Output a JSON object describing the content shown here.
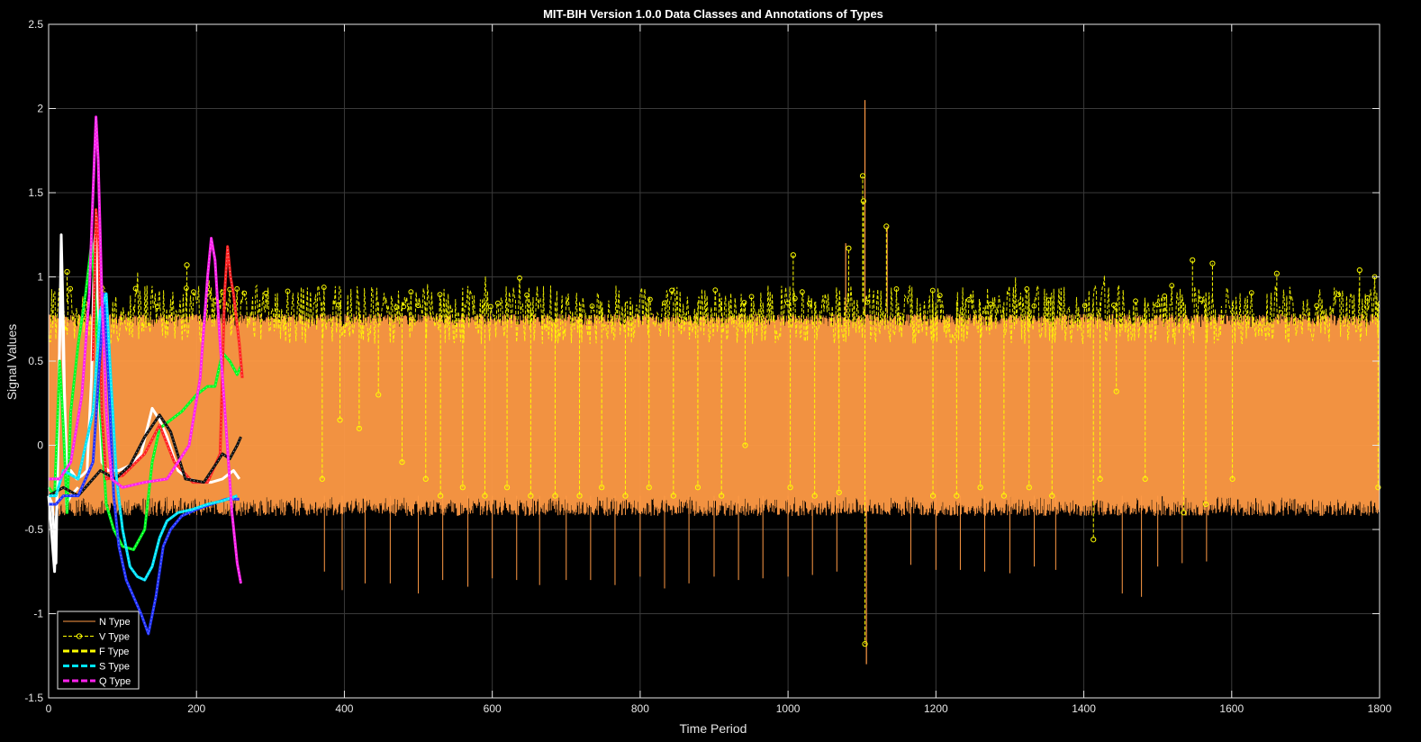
{
  "chart_data": {
    "type": "line",
    "title": "MIT-BIH Version 1.0.0 Data Classes and Annotations of Types",
    "xlabel": "Time Period",
    "ylabel": "Signal Values",
    "xlim": [
      0,
      1800
    ],
    "ylim": [
      -1.5,
      2.5
    ],
    "xticks": [
      0,
      200,
      400,
      600,
      800,
      1000,
      1200,
      1400,
      1600,
      1800
    ],
    "yticks": [
      -1.5,
      -1,
      -0.5,
      0,
      0.5,
      1,
      1.5,
      2,
      2.5
    ],
    "xtick_labels": [
      "0",
      "200",
      "400",
      "600",
      "800",
      "1000",
      "1200",
      "1400",
      "1600",
      "1800"
    ],
    "ytick_labels": [
      "-1.5",
      "-1",
      "-0.5",
      "0",
      "0.5",
      "1",
      "1.5",
      "2",
      "2.5"
    ],
    "grid": true,
    "background": "#000000",
    "legend_position": "bottom-left",
    "series": [
      {
        "name": "N Type",
        "color": "#ff9a45",
        "style": "solid",
        "x_range": [
          0,
          1800
        ],
        "band_upper": 0.78,
        "band_lower": -0.3,
        "spikes_down": [
          [
            373,
            -0.75
          ],
          [
            397,
            -0.86
          ],
          [
            428,
            -0.82
          ],
          [
            462,
            -0.82
          ],
          [
            500,
            -0.88
          ],
          [
            533,
            -0.8
          ],
          [
            567,
            -0.84
          ],
          [
            600,
            -0.79
          ],
          [
            633,
            -0.8
          ],
          [
            664,
            -0.83
          ],
          [
            700,
            -0.8
          ],
          [
            733,
            -0.8
          ],
          [
            766,
            -0.83
          ],
          [
            800,
            -0.78
          ],
          [
            833,
            -0.85
          ],
          [
            866,
            -0.82
          ],
          [
            900,
            -0.78
          ],
          [
            933,
            -0.8
          ],
          [
            966,
            -0.79
          ],
          [
            1000,
            -0.78
          ],
          [
            1033,
            -0.77
          ],
          [
            1066,
            -0.75
          ],
          [
            1166,
            -0.71
          ],
          [
            1200,
            -0.74
          ],
          [
            1233,
            -0.74
          ],
          [
            1266,
            -0.75
          ],
          [
            1300,
            -0.76
          ],
          [
            1333,
            -0.72
          ],
          [
            1362,
            -0.74
          ],
          [
            1452,
            -0.88
          ],
          [
            1478,
            -0.9
          ],
          [
            1500,
            -0.72
          ],
          [
            1533,
            -0.7
          ],
          [
            1566,
            -0.69
          ]
        ],
        "spikes_up": [
          [
            1104,
            2.05
          ],
          [
            1134,
            1.3
          ],
          [
            1078,
            1.2
          ]
        ],
        "spikes_low": [
          [
            1106,
            -1.3
          ]
        ]
      },
      {
        "name": "V Type",
        "color": "#ffff00",
        "style": "dashed-circles",
        "x_range": [
          0,
          1800
        ],
        "band_upper": 0.95,
        "band_lower": 0.6,
        "dips": [
          [
            370,
            -0.2
          ],
          [
            394,
            0.15
          ],
          [
            420,
            0.1
          ],
          [
            446,
            0.3
          ],
          [
            478,
            -0.1
          ],
          [
            510,
            -0.2
          ],
          [
            530,
            -0.3
          ],
          [
            560,
            -0.25
          ],
          [
            590,
            -0.3
          ],
          [
            620,
            -0.25
          ],
          [
            652,
            -0.3
          ],
          [
            685,
            -0.3
          ],
          [
            718,
            -0.3
          ],
          [
            748,
            -0.25
          ],
          [
            780,
            -0.3
          ],
          [
            812,
            -0.25
          ],
          [
            845,
            -0.3
          ],
          [
            878,
            -0.25
          ],
          [
            910,
            -0.3
          ],
          [
            942,
            0.0
          ],
          [
            1003,
            -0.25
          ],
          [
            1036,
            -0.3
          ],
          [
            1069,
            -0.28
          ],
          [
            1196,
            -0.3
          ],
          [
            1228,
            -0.3
          ],
          [
            1260,
            -0.25
          ],
          [
            1292,
            -0.3
          ],
          [
            1326,
            -0.25
          ],
          [
            1357,
            -0.3
          ],
          [
            1413,
            -0.56
          ],
          [
            1422,
            -0.2
          ],
          [
            1444,
            0.32
          ],
          [
            1483,
            -0.2
          ],
          [
            1535,
            -0.4
          ],
          [
            1565,
            -0.35
          ],
          [
            1601,
            -0.2
          ],
          [
            1798,
            -0.25
          ]
        ],
        "peaks": [
          [
            1101,
            1.6
          ],
          [
            1102,
            1.45
          ],
          [
            1104,
            -1.18
          ],
          [
            1133,
            1.3
          ],
          [
            1082,
            1.17
          ],
          [
            1007,
            1.13
          ],
          [
            1547,
            1.1
          ],
          [
            1574,
            1.08
          ],
          [
            1661,
            1.02
          ],
          [
            1773,
            1.04
          ],
          [
            187,
            1.07
          ],
          [
            25,
            1.03
          ]
        ]
      },
      {
        "name": "F Type",
        "color": "#ffff00",
        "style": "thick-dashed",
        "x_range": [
          0,
          260
        ]
      },
      {
        "name": "S Type",
        "color": "#00e5ff",
        "style": "thick-dashed",
        "x_range": [
          0,
          260
        ]
      },
      {
        "name": "Q Type",
        "color": "#ff22ee",
        "style": "thick-dashed",
        "x_range": [
          0,
          260
        ]
      }
    ],
    "short_traces": [
      {
        "color": "#ffffff",
        "points": [
          [
            0,
            -0.3
          ],
          [
            5,
            -0.35
          ],
          [
            10,
            -0.7
          ],
          [
            13,
            0.2
          ],
          [
            17,
            1.1
          ],
          [
            20,
            0.5
          ],
          [
            25,
            -0.2
          ],
          [
            30,
            -0.15
          ],
          [
            38,
            -0.2
          ],
          [
            45,
            -0.18
          ],
          [
            52,
            -0.15
          ],
          [
            58,
            0.4
          ],
          [
            62,
            1.2
          ],
          [
            65,
            1.35
          ],
          [
            68,
            0.3
          ],
          [
            72,
            -0.1
          ],
          [
            80,
            -0.15
          ],
          [
            95,
            -0.15
          ],
          [
            110,
            -0.12
          ],
          [
            125,
            -0.05
          ],
          [
            140,
            0.22
          ],
          [
            150,
            0.15
          ],
          [
            160,
            0.05
          ],
          [
            175,
            -0.15
          ],
          [
            190,
            -0.2
          ],
          [
            205,
            -0.22
          ],
          [
            220,
            -0.22
          ],
          [
            235,
            -0.2
          ],
          [
            250,
            -0.15
          ],
          [
            258,
            -0.2
          ]
        ]
      },
      {
        "color": "#ffffff",
        "points": [
          [
            0,
            -0.3
          ],
          [
            8,
            -0.75
          ],
          [
            12,
            -0.2
          ],
          [
            17,
            1.25
          ],
          [
            20,
            0.7
          ],
          [
            24,
            -0.35
          ],
          [
            30,
            -0.3
          ],
          [
            40,
            -0.25
          ]
        ]
      },
      {
        "color": "#00ff22",
        "points": [
          [
            0,
            -0.25
          ],
          [
            8,
            -0.3
          ],
          [
            15,
            0.5
          ],
          [
            20,
            0.1
          ],
          [
            25,
            -0.4
          ],
          [
            30,
            0.2
          ],
          [
            40,
            0.6
          ],
          [
            50,
            0.9
          ],
          [
            58,
            1.2
          ],
          [
            62,
            0.95
          ],
          [
            66,
            0.6
          ],
          [
            70,
            0.2
          ],
          [
            78,
            -0.35
          ],
          [
            88,
            -0.5
          ],
          [
            100,
            -0.6
          ],
          [
            115,
            -0.62
          ],
          [
            130,
            -0.5
          ],
          [
            140,
            -0.1
          ],
          [
            150,
            0.1
          ],
          [
            165,
            0.15
          ],
          [
            180,
            0.2
          ],
          [
            200,
            0.3
          ],
          [
            215,
            0.35
          ],
          [
            225,
            0.35
          ],
          [
            235,
            0.55
          ],
          [
            245,
            0.5
          ],
          [
            255,
            0.42
          ],
          [
            260,
            0.47
          ]
        ]
      },
      {
        "color": "#ff2222",
        "points": [
          [
            60,
            0.5
          ],
          [
            64,
            1.4
          ],
          [
            68,
            1.2
          ],
          [
            72,
            0.2
          ],
          [
            78,
            -0.2
          ],
          [
            100,
            -0.18
          ],
          [
            130,
            -0.05
          ],
          [
            150,
            0.12
          ],
          [
            170,
            -0.1
          ],
          [
            195,
            -0.22
          ],
          [
            215,
            -0.22
          ],
          [
            232,
            -0.05
          ],
          [
            238,
            0.9
          ],
          [
            242,
            1.18
          ],
          [
            246,
            1.0
          ],
          [
            250,
            0.9
          ],
          [
            258,
            0.6
          ],
          [
            262,
            0.4
          ]
        ]
      },
      {
        "color": "#111111",
        "points": [
          [
            0,
            -0.3
          ],
          [
            20,
            -0.25
          ],
          [
            40,
            -0.3
          ],
          [
            70,
            -0.15
          ],
          [
            90,
            -0.2
          ],
          [
            110,
            -0.12
          ],
          [
            130,
            0.05
          ],
          [
            150,
            0.18
          ],
          [
            165,
            0.08
          ],
          [
            185,
            -0.2
          ],
          [
            210,
            -0.22
          ],
          [
            228,
            -0.1
          ],
          [
            235,
            -0.05
          ],
          [
            245,
            -0.08
          ],
          [
            255,
            0.0
          ],
          [
            260,
            0.05
          ]
        ]
      },
      {
        "color": "#2233ff",
        "points": [
          [
            0,
            -0.35
          ],
          [
            10,
            -0.35
          ],
          [
            20,
            -0.3
          ],
          [
            40,
            -0.3
          ],
          [
            60,
            -0.1
          ],
          [
            75,
            0.9
          ],
          [
            82,
            0.3
          ],
          [
            88,
            -0.3
          ],
          [
            95,
            -0.6
          ],
          [
            105,
            -0.8
          ],
          [
            115,
            -0.9
          ],
          [
            125,
            -1.0
          ],
          [
            135,
            -1.12
          ],
          [
            145,
            -0.9
          ],
          [
            155,
            -0.6
          ],
          [
            165,
            -0.5
          ],
          [
            180,
            -0.42
          ],
          [
            200,
            -0.38
          ],
          [
            220,
            -0.35
          ],
          [
            240,
            -0.32
          ],
          [
            258,
            -0.32
          ]
        ]
      },
      {
        "color": "#00e5ff",
        "points": [
          [
            0,
            -0.3
          ],
          [
            10,
            -0.3
          ],
          [
            20,
            -0.15
          ],
          [
            40,
            -0.2
          ],
          [
            60,
            0.2
          ],
          [
            70,
            0.8
          ],
          [
            78,
            0.9
          ],
          [
            84,
            0.4
          ],
          [
            92,
            -0.2
          ],
          [
            100,
            -0.5
          ],
          [
            110,
            -0.72
          ],
          [
            120,
            -0.78
          ],
          [
            130,
            -0.8
          ],
          [
            140,
            -0.72
          ],
          [
            150,
            -0.55
          ],
          [
            160,
            -0.45
          ],
          [
            175,
            -0.4
          ],
          [
            195,
            -0.38
          ],
          [
            215,
            -0.35
          ],
          [
            235,
            -0.33
          ],
          [
            255,
            -0.3
          ]
        ]
      },
      {
        "color": "#ff22ee",
        "points": [
          [
            0,
            -0.2
          ],
          [
            15,
            -0.2
          ],
          [
            30,
            -0.1
          ],
          [
            45,
            0.3
          ],
          [
            55,
            0.9
          ],
          [
            60,
            1.5
          ],
          [
            64,
            1.95
          ],
          [
            67,
            1.7
          ],
          [
            72,
            0.9
          ],
          [
            78,
            0.2
          ],
          [
            85,
            -0.2
          ],
          [
            100,
            -0.25
          ],
          [
            130,
            -0.22
          ],
          [
            160,
            -0.2
          ],
          [
            190,
            0.0
          ],
          [
            205,
            0.4
          ],
          [
            215,
            1.0
          ],
          [
            220,
            1.23
          ],
          [
            225,
            1.1
          ],
          [
            232,
            0.6
          ],
          [
            240,
            0.1
          ],
          [
            248,
            -0.4
          ],
          [
            255,
            -0.7
          ],
          [
            260,
            -0.82
          ]
        ]
      }
    ]
  }
}
